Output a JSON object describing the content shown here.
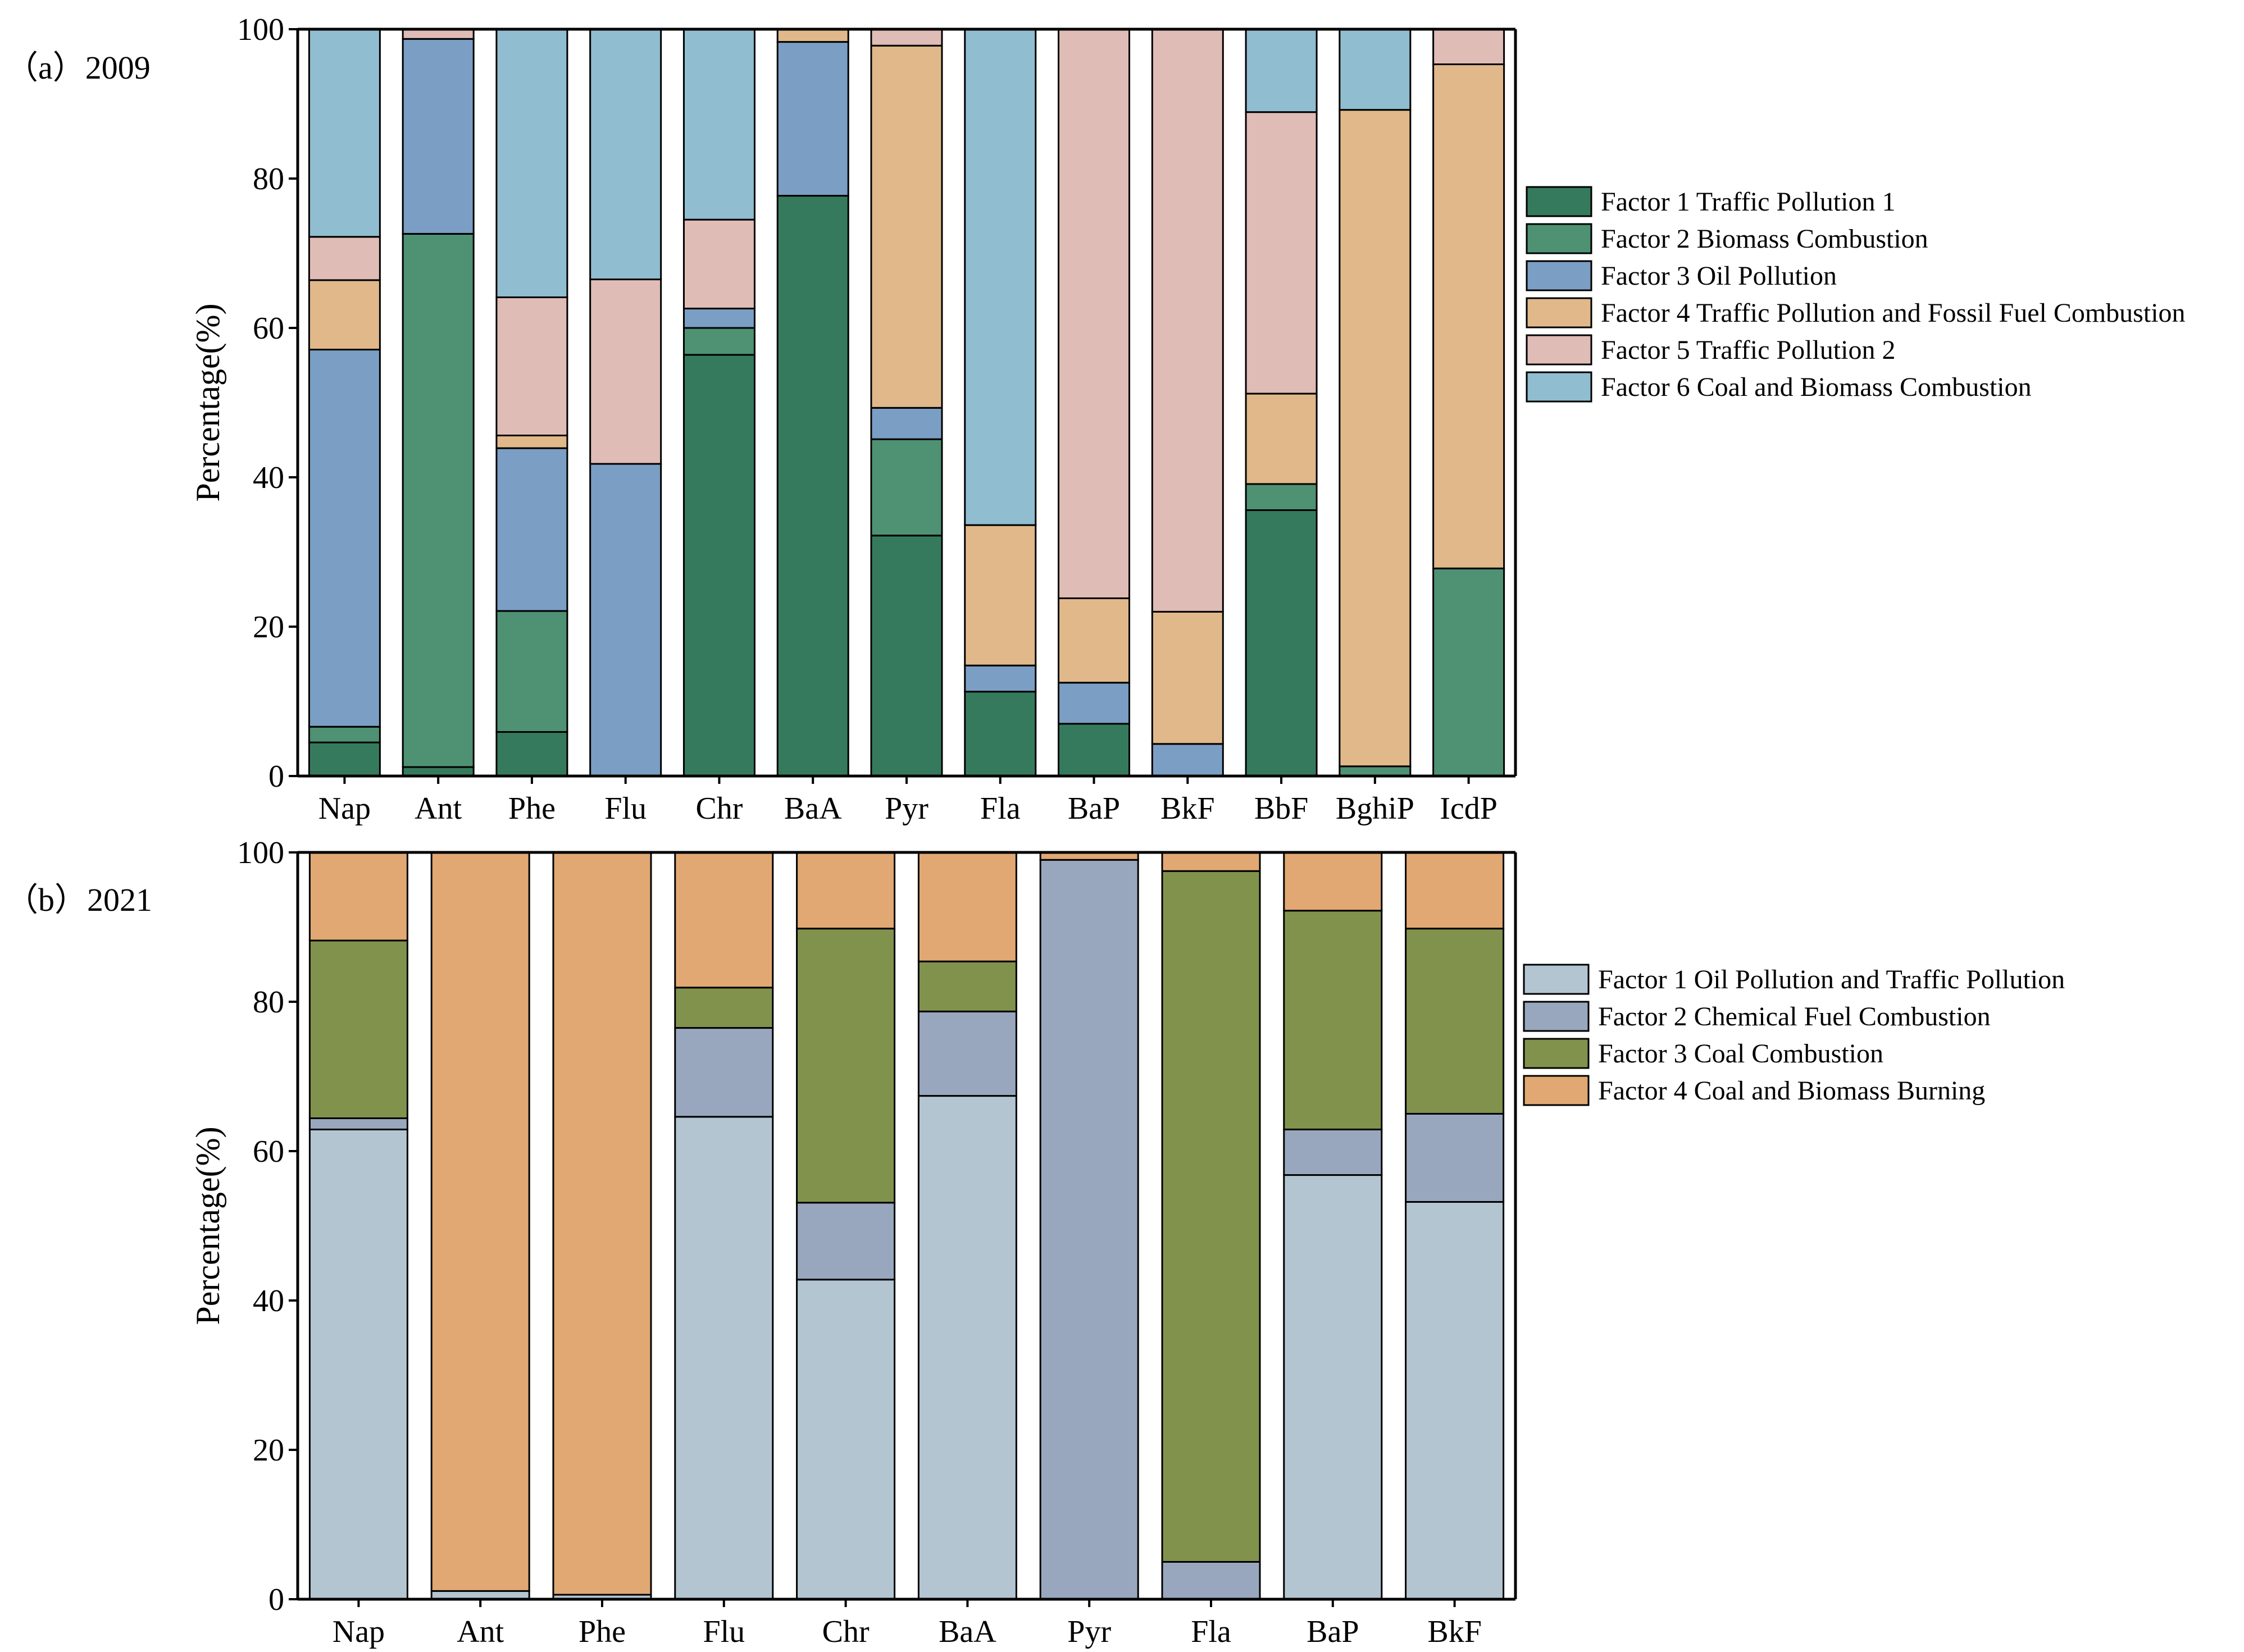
{
  "chart_data": [
    {
      "type": "bar",
      "stacked": true,
      "panel_label": "（a）2009",
      "ylabel": "Percentage(%)",
      "ylim": [
        0,
        100
      ],
      "yticks": [
        0,
        20,
        40,
        60,
        80,
        100
      ],
      "legend_position": "right",
      "categories": [
        "Nap",
        "Ant",
        "Phe",
        "Flu",
        "Chr",
        "BaA",
        "Pyr",
        "Fla",
        "BaP",
        "BkF",
        "BbF",
        "BghiP",
        "IcdP"
      ],
      "series": [
        {
          "name": "Factor 1 Traffic Pollution 1",
          "color": "#367A5E",
          "values": [
            4.5,
            1.2,
            5.9,
            0,
            56.4,
            77.7,
            32.2,
            11.3,
            7.0,
            0,
            35.6,
            0,
            0
          ]
        },
        {
          "name": "Factor 2 Biomass Combustion",
          "color": "#4E9173",
          "values": [
            2.1,
            71.4,
            16.2,
            0,
            3.6,
            0,
            12.9,
            0,
            0,
            0,
            3.5,
            1.3,
            27.8
          ]
        },
        {
          "name": "Factor 3 Oil Pollution",
          "color": "#7B9EC4",
          "values": [
            50.5,
            26.1,
            21.8,
            41.8,
            2.6,
            20.6,
            4.2,
            3.5,
            5.5,
            4.3,
            0,
            0,
            0
          ]
        },
        {
          "name": "Factor 4 Traffic Pollution and Fossil Fuel Combustion",
          "color": "#E0B88A",
          "values": [
            9.3,
            0,
            1.7,
            0,
            0,
            1.7,
            48.5,
            18.8,
            11.3,
            17.7,
            12.1,
            87.9,
            67.5
          ]
        },
        {
          "name": "Factor 5 Traffic Pollution 2",
          "color": "#E0BCB6",
          "values": [
            5.8,
            1.3,
            18.5,
            24.7,
            11.9,
            0,
            2.2,
            0,
            76.2,
            78.0,
            37.7,
            0,
            4.7
          ]
        },
        {
          "name": "Factor 6 Coal and Biomass Combustion",
          "color": "#90BDD0",
          "values": [
            27.8,
            0,
            35.9,
            33.5,
            25.5,
            0,
            0,
            66.4,
            0,
            0,
            11.1,
            10.8,
            0
          ]
        }
      ]
    },
    {
      "type": "bar",
      "stacked": true,
      "panel_label": "（b）2021",
      "ylabel": "Percentage(%)",
      "ylim": [
        0,
        100
      ],
      "yticks": [
        0,
        20,
        40,
        60,
        80,
        100
      ],
      "legend_position": "right",
      "categories": [
        "Nap",
        "Ant",
        "Phe",
        "Flu",
        "Chr",
        "BaA",
        "Pyr",
        "Fla",
        "BaP",
        "BkF"
      ],
      "series": [
        {
          "name": "Factor 1 Oil Pollution and Traffic Pollution",
          "color": "#B3C5D1",
          "values": [
            62.9,
            1.1,
            0.6,
            64.6,
            42.8,
            67.4,
            0,
            0,
            56.8,
            53.2
          ]
        },
        {
          "name": "Factor 2 Chemical Fuel Combustion",
          "color": "#98A7BD",
          "values": [
            1.5,
            0,
            0,
            11.9,
            10.3,
            11.3,
            99.0,
            5.0,
            6.1,
            11.8
          ]
        },
        {
          "name": "Factor 3 Coal Combustion",
          "color": "#81924D",
          "values": [
            23.8,
            0,
            0,
            5.4,
            36.7,
            6.7,
            0,
            92.5,
            29.3,
            24.8
          ]
        },
        {
          "name": "Factor 4 Coal and Biomass Burning",
          "color": "#E1A873",
          "values": [
            11.8,
            98.9,
            99.4,
            18.1,
            10.2,
            14.6,
            1.0,
            2.5,
            7.8,
            10.2
          ]
        }
      ]
    }
  ]
}
